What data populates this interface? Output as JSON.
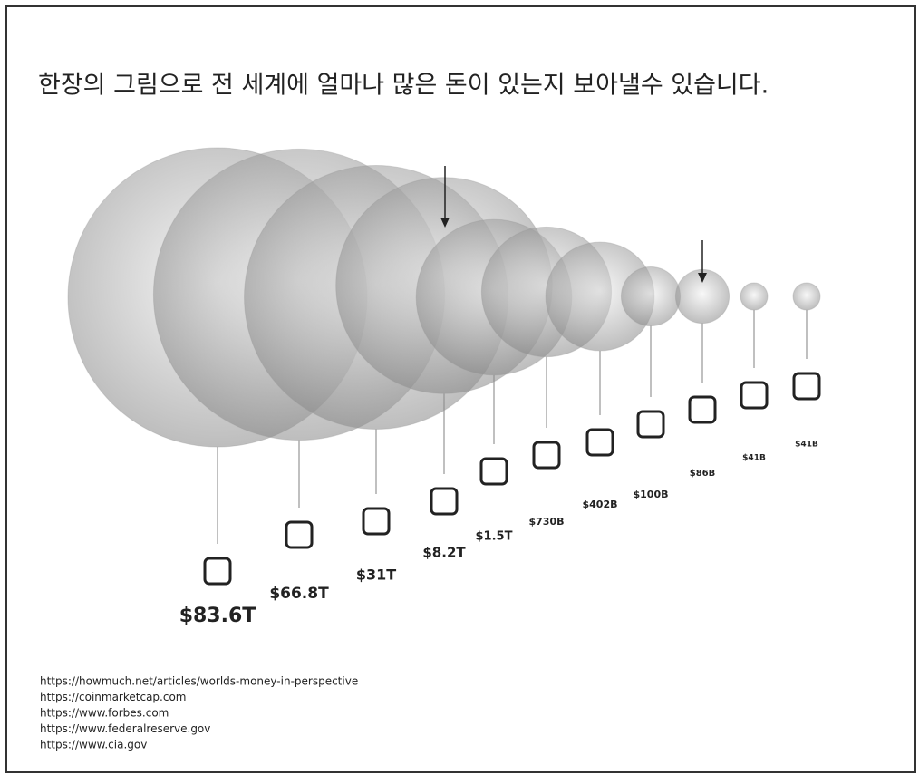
{
  "chart_data": {
    "type": "bubble",
    "title": "한장의 그림으로 전 세계에 얼마나 많은 돈이 있는지 보아낼수 있습니다.",
    "values": [
      83.6,
      66.8,
      31,
      8.2,
      1.5,
      0.73,
      0.402,
      0.1,
      0.086,
      0.041,
      0.041
    ],
    "value_labels": [
      "$83.6T",
      "$66.8T",
      "$31T",
      "$8.2T",
      "$1.5T",
      "$730B",
      "$402B",
      "$100B",
      "$86B",
      "$41B",
      "$41B"
    ],
    "color": "#9a9a9a"
  },
  "sources": [
    "https://howmuch.net/articles/worlds-money-in-perspective",
    "https://coinmarketcap.com",
    "https://www.forbes.com",
    "https://www.federalreserve.gov",
    "https://www.cia.gov"
  ]
}
